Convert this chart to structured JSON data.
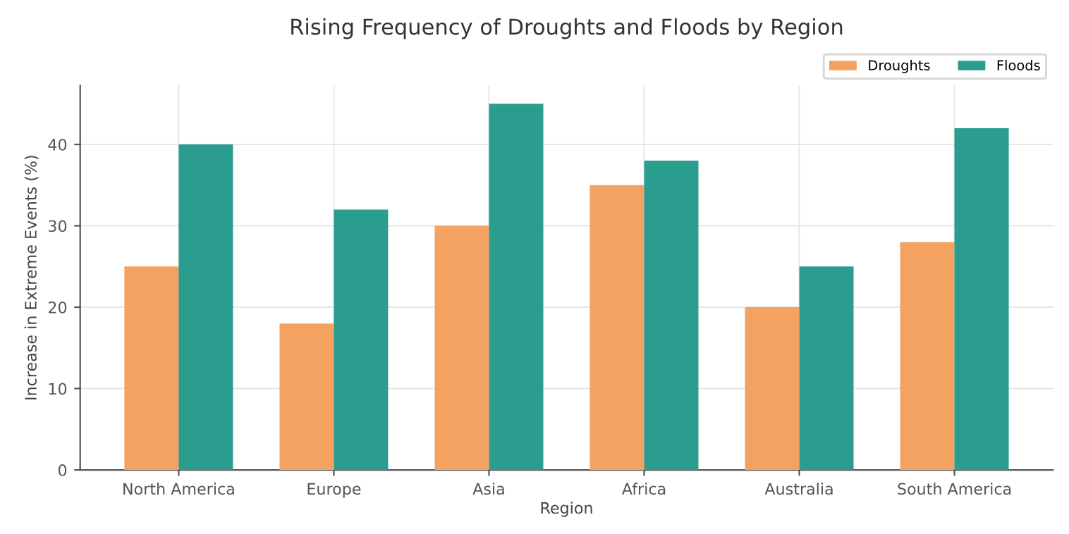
{
  "chart_data": {
    "type": "bar",
    "title": "Rising Frequency of Droughts and Floods by Region",
    "xlabel": "Region",
    "ylabel": "Increase in Extreme Events (%)",
    "categories": [
      "North America",
      "Europe",
      "Asia",
      "Africa",
      "Australia",
      "South America"
    ],
    "series": [
      {
        "name": "Droughts",
        "color": "#f4a261",
        "values": [
          25,
          18,
          30,
          35,
          20,
          28
        ]
      },
      {
        "name": "Floods",
        "color": "#2a9d8f",
        "values": [
          40,
          32,
          45,
          38,
          25,
          42
        ]
      }
    ],
    "ylim": [
      0,
      47.25
    ],
    "yticks": [
      0,
      10,
      20,
      30,
      40
    ],
    "grid": true,
    "legend": "top right"
  }
}
